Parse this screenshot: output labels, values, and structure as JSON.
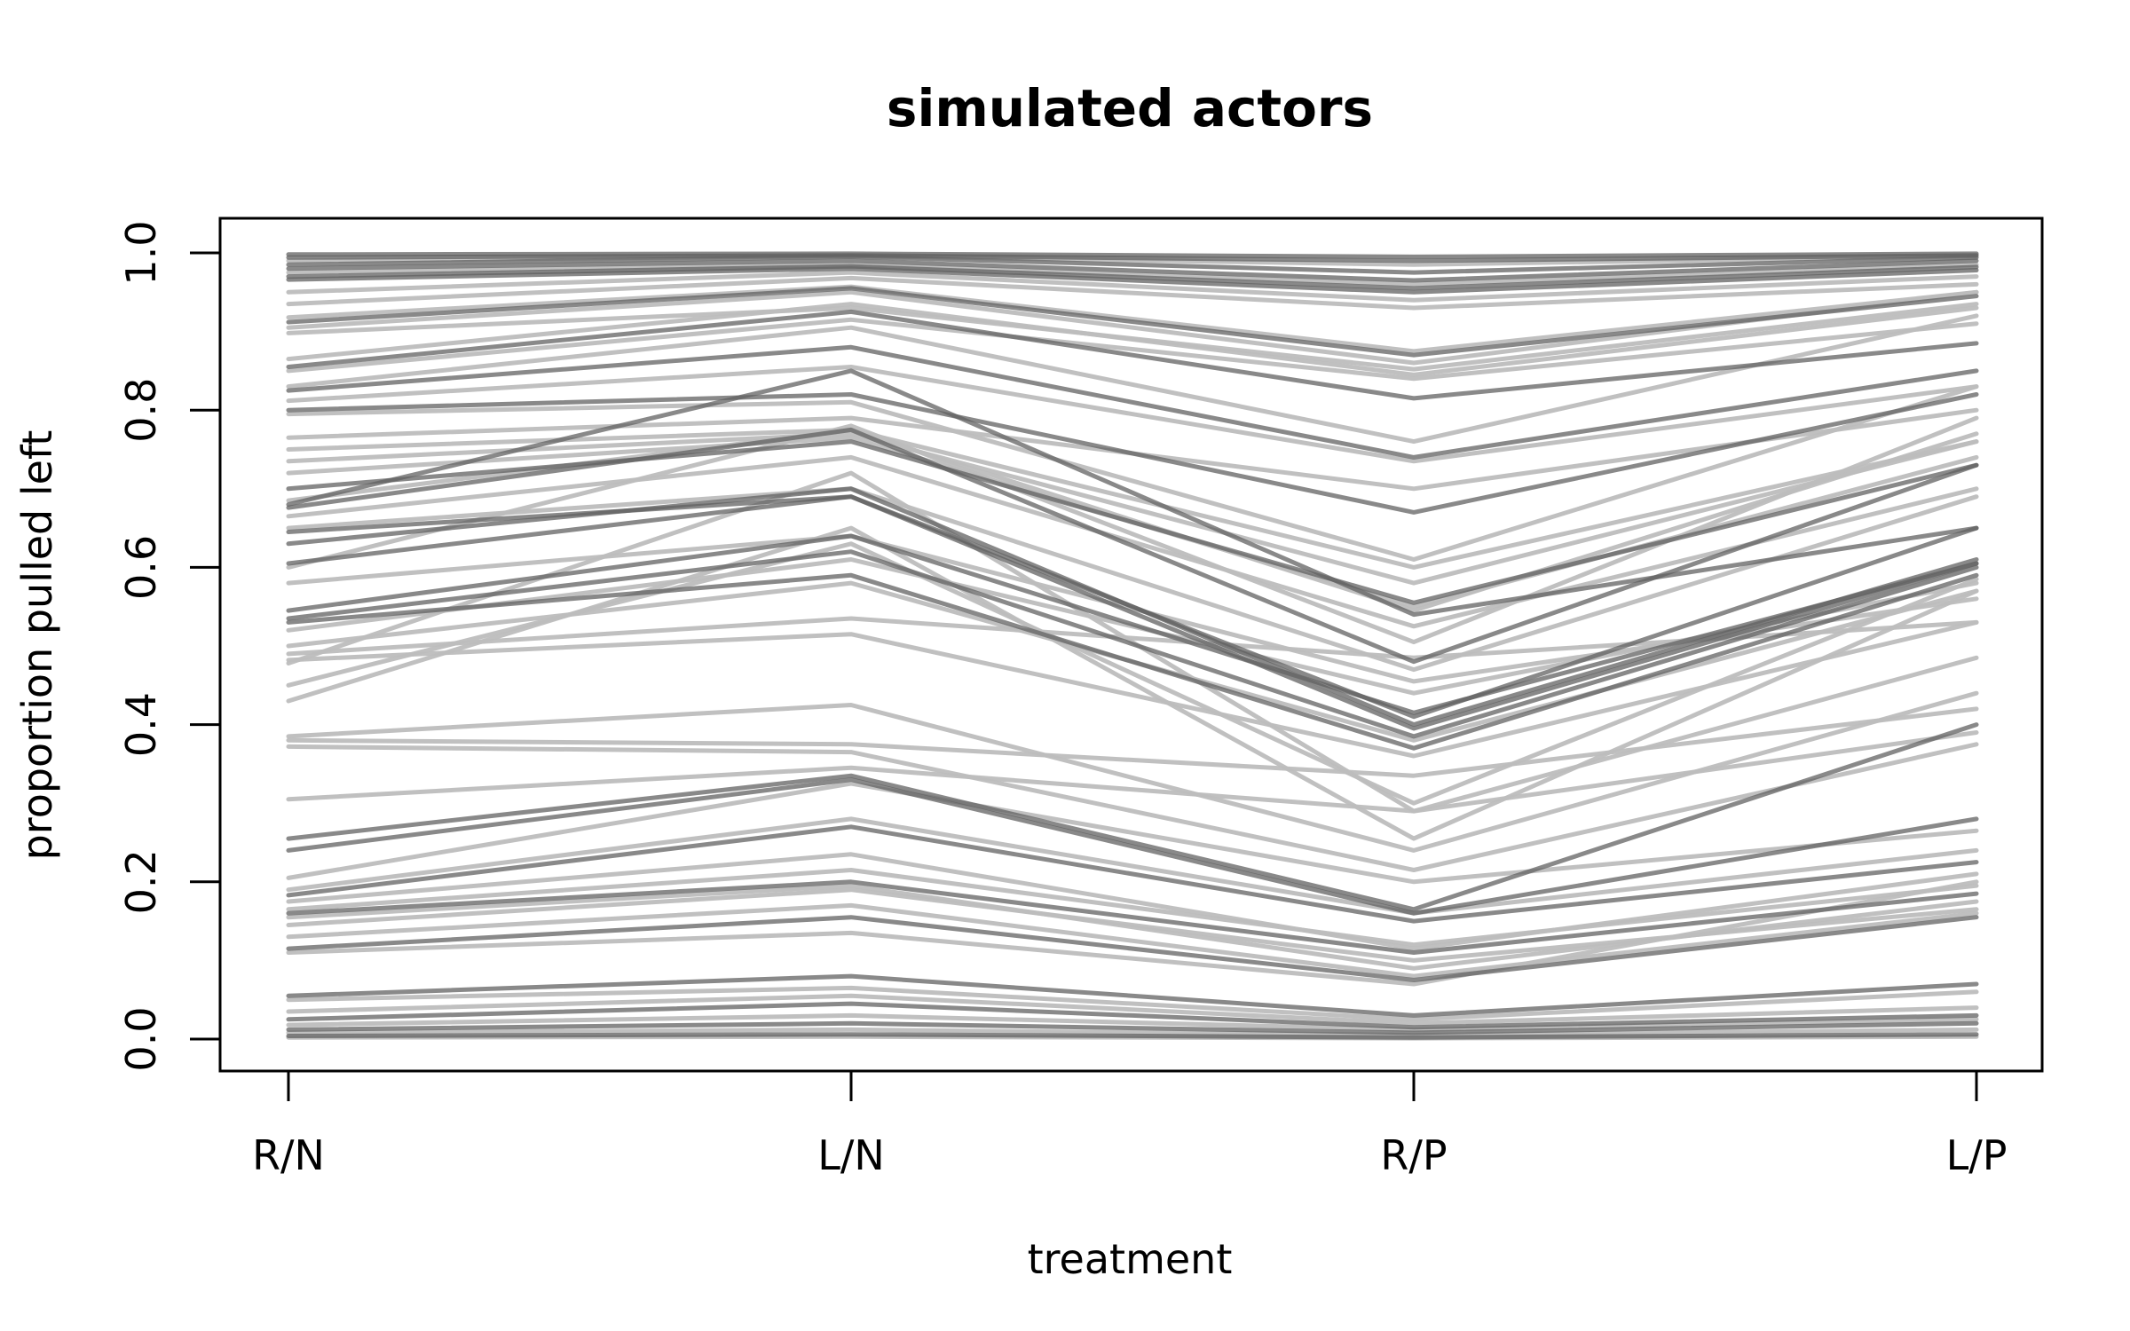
{
  "chart_data": {
    "type": "line",
    "title": "simulated actors",
    "xlabel": "treatment",
    "ylabel": "proportion pulled left",
    "categories": [
      "R/N",
      "L/N",
      "R/P",
      "L/P"
    ],
    "ylim": [
      0,
      1
    ],
    "yticks": [
      "0.0",
      "0.2",
      "0.4",
      "0.6",
      "0.8",
      "1.0"
    ],
    "yticks_values": [
      0,
      0.2,
      0.4,
      0.6,
      0.8,
      1.0
    ],
    "grid": false,
    "legend": "none",
    "light_color": "#bdbdbd",
    "dark_color": "#616161",
    "series": [
      {
        "values": [
          0.998,
          0.999,
          0.995,
          0.999
        ],
        "shade": "dark"
      },
      {
        "values": [
          0.994,
          0.997,
          0.99,
          0.997
        ],
        "shade": "dark"
      },
      {
        "values": [
          0.99,
          0.996,
          0.985,
          0.996
        ],
        "shade": "light"
      },
      {
        "values": [
          0.985,
          0.995,
          0.975,
          0.994
        ],
        "shade": "dark"
      },
      {
        "values": [
          0.98,
          0.99,
          0.965,
          0.99
        ],
        "shade": "dark"
      },
      {
        "values": [
          0.975,
          0.985,
          0.96,
          0.985
        ],
        "shade": "light"
      },
      {
        "values": [
          0.97,
          0.983,
          0.955,
          0.982
        ],
        "shade": "dark"
      },
      {
        "values": [
          0.966,
          0.98,
          0.95,
          0.978
        ],
        "shade": "dark"
      },
      {
        "values": [
          0.95,
          0.975,
          0.94,
          0.97
        ],
        "shade": "light"
      },
      {
        "values": [
          0.935,
          0.968,
          0.93,
          0.96
        ],
        "shade": "light"
      },
      {
        "values": [
          0.918,
          0.957,
          0.875,
          0.95
        ],
        "shade": "light"
      },
      {
        "values": [
          0.912,
          0.955,
          0.87,
          0.945
        ],
        "shade": "dark"
      },
      {
        "values": [
          0.905,
          0.95,
          0.86,
          0.95
        ],
        "shade": "light"
      },
      {
        "values": [
          0.898,
          0.93,
          0.852,
          0.935
        ],
        "shade": "light"
      },
      {
        "values": [
          0.865,
          0.935,
          0.845,
          0.93
        ],
        "shade": "light"
      },
      {
        "values": [
          0.855,
          0.925,
          0.815,
          0.885
        ],
        "shade": "dark"
      },
      {
        "values": [
          0.85,
          0.915,
          0.84,
          0.91
        ],
        "shade": "light"
      },
      {
        "values": [
          0.83,
          0.905,
          0.76,
          0.92
        ],
        "shade": "light"
      },
      {
        "values": [
          0.825,
          0.88,
          0.74,
          0.85
        ],
        "shade": "dark"
      },
      {
        "values": [
          0.812,
          0.855,
          0.735,
          0.83
        ],
        "shade": "light"
      },
      {
        "values": [
          0.8,
          0.82,
          0.67,
          0.82
        ],
        "shade": "dark"
      },
      {
        "values": [
          0.795,
          0.81,
          0.61,
          0.83
        ],
        "shade": "light"
      },
      {
        "values": [
          0.765,
          0.79,
          0.7,
          0.8
        ],
        "shade": "light"
      },
      {
        "values": [
          0.75,
          0.775,
          0.6,
          0.76
        ],
        "shade": "light"
      },
      {
        "values": [
          0.735,
          0.77,
          0.58,
          0.76
        ],
        "shade": "light"
      },
      {
        "values": [
          0.72,
          0.765,
          0.55,
          0.74
        ],
        "shade": "light"
      },
      {
        "values": [
          0.7,
          0.76,
          0.555,
          0.73
        ],
        "shade": "dark"
      },
      {
        "values": [
          0.685,
          0.775,
          0.545,
          0.77
        ],
        "shade": "light"
      },
      {
        "values": [
          0.68,
          0.85,
          0.54,
          0.65
        ],
        "shade": "dark"
      },
      {
        "values": [
          0.676,
          0.775,
          0.48,
          0.73
        ],
        "shade": "dark"
      },
      {
        "values": [
          0.665,
          0.74,
          0.525,
          0.7
        ],
        "shade": "light"
      },
      {
        "values": [
          0.65,
          0.7,
          0.47,
          0.69
        ],
        "shade": "light"
      },
      {
        "values": [
          0.645,
          0.69,
          0.41,
          0.65
        ],
        "shade": "dark"
      },
      {
        "values": [
          0.63,
          0.7,
          0.4,
          0.61
        ],
        "shade": "dark"
      },
      {
        "values": [
          0.605,
          0.69,
          0.395,
          0.605
        ],
        "shade": "dark"
      },
      {
        "values": [
          0.6,
          0.78,
          0.505,
          0.79
        ],
        "shade": "light"
      },
      {
        "values": [
          0.58,
          0.64,
          0.455,
          0.56
        ],
        "shade": "light"
      },
      {
        "values": [
          0.545,
          0.64,
          0.415,
          0.605
        ],
        "shade": "dark"
      },
      {
        "values": [
          0.535,
          0.62,
          0.385,
          0.6
        ],
        "shade": "dark"
      },
      {
        "values": [
          0.53,
          0.59,
          0.37,
          0.59
        ],
        "shade": "dark"
      },
      {
        "values": [
          0.52,
          0.61,
          0.44,
          0.58
        ],
        "shade": "light"
      },
      {
        "values": [
          0.5,
          0.58,
          0.38,
          0.57
        ],
        "shade": "light"
      },
      {
        "values": [
          0.49,
          0.535,
          0.485,
          0.53
        ],
        "shade": "light"
      },
      {
        "values": [
          0.482,
          0.515,
          0.36,
          0.53
        ],
        "shade": "light"
      },
      {
        "values": [
          0.478,
          0.72,
          0.29,
          0.485
        ],
        "shade": "light"
      },
      {
        "values": [
          0.45,
          0.63,
          0.3,
          0.585
        ],
        "shade": "light"
      },
      {
        "values": [
          0.43,
          0.65,
          0.255,
          0.57
        ],
        "shade": "light"
      },
      {
        "values": [
          0.385,
          0.425,
          0.24,
          0.44
        ],
        "shade": "light"
      },
      {
        "values": [
          0.38,
          0.375,
          0.335,
          0.42
        ],
        "shade": "light"
      },
      {
        "values": [
          0.372,
          0.365,
          0.215,
          0.375
        ],
        "shade": "light"
      },
      {
        "values": [
          0.305,
          0.345,
          0.29,
          0.39
        ],
        "shade": "light"
      },
      {
        "values": [
          0.255,
          0.335,
          0.165,
          0.4
        ],
        "shade": "dark"
      },
      {
        "values": [
          0.24,
          0.33,
          0.16,
          0.28
        ],
        "shade": "dark"
      },
      {
        "values": [
          0.205,
          0.325,
          0.2,
          0.265
        ],
        "shade": "light"
      },
      {
        "values": [
          0.19,
          0.28,
          0.16,
          0.24
        ],
        "shade": "light"
      },
      {
        "values": [
          0.183,
          0.27,
          0.15,
          0.225
        ],
        "shade": "dark"
      },
      {
        "values": [
          0.175,
          0.235,
          0.115,
          0.21
        ],
        "shade": "light"
      },
      {
        "values": [
          0.165,
          0.215,
          0.12,
          0.195
        ],
        "shade": "light"
      },
      {
        "values": [
          0.16,
          0.2,
          0.11,
          0.185
        ],
        "shade": "dark"
      },
      {
        "values": [
          0.155,
          0.195,
          0.09,
          0.175
        ],
        "shade": "light"
      },
      {
        "values": [
          0.145,
          0.19,
          0.1,
          0.165
        ],
        "shade": "light"
      },
      {
        "values": [
          0.13,
          0.17,
          0.08,
          0.16
        ],
        "shade": "light"
      },
      {
        "values": [
          0.115,
          0.155,
          0.075,
          0.155
        ],
        "shade": "dark"
      },
      {
        "values": [
          0.11,
          0.135,
          0.07,
          0.2
        ],
        "shade": "light"
      },
      {
        "values": [
          0.055,
          0.08,
          0.03,
          0.07
        ],
        "shade": "dark"
      },
      {
        "values": [
          0.05,
          0.065,
          0.025,
          0.06
        ],
        "shade": "light"
      },
      {
        "values": [
          0.035,
          0.055,
          0.02,
          0.04
        ],
        "shade": "light"
      },
      {
        "values": [
          0.025,
          0.045,
          0.015,
          0.03
        ],
        "shade": "dark"
      },
      {
        "values": [
          0.018,
          0.03,
          0.012,
          0.025
        ],
        "shade": "light"
      },
      {
        "values": [
          0.012,
          0.02,
          0.008,
          0.02
        ],
        "shade": "dark"
      },
      {
        "values": [
          0.008,
          0.012,
          0.005,
          0.012
        ],
        "shade": "light"
      },
      {
        "values": [
          0.004,
          0.006,
          0.002,
          0.006
        ],
        "shade": "dark"
      },
      {
        "values": [
          0.002,
          0.003,
          0.001,
          0.003
        ],
        "shade": "light"
      }
    ]
  }
}
